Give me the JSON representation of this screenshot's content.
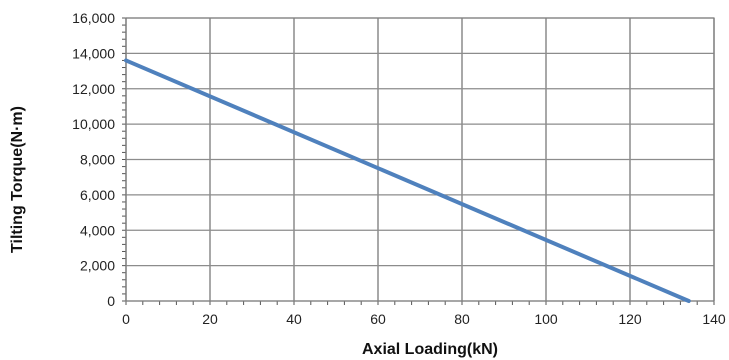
{
  "chart_data": {
    "type": "line",
    "title": "",
    "xlabel": "Axial Loading(kN)",
    "ylabel": "Tilting Torque(N·m)",
    "xlim": [
      0,
      140
    ],
    "ylim": [
      0,
      16000
    ],
    "x_ticks": [
      0,
      20,
      40,
      60,
      80,
      100,
      120,
      140
    ],
    "y_ticks": [
      0,
      2000,
      4000,
      6000,
      8000,
      10000,
      12000,
      14000,
      16000
    ],
    "x_tick_labels": [
      "0",
      "20",
      "40",
      "60",
      "80",
      "100",
      "120",
      "140"
    ],
    "y_tick_labels": [
      "0",
      "2,000",
      "4,000",
      "6,000",
      "8,000",
      "10,000",
      "12,000",
      "14,000",
      "16,000"
    ],
    "grid": true,
    "legend": "none",
    "series": [
      {
        "x": [
          0,
          134
        ],
        "y": [
          13600,
          0
        ],
        "color": "#4f81bd"
      }
    ]
  }
}
